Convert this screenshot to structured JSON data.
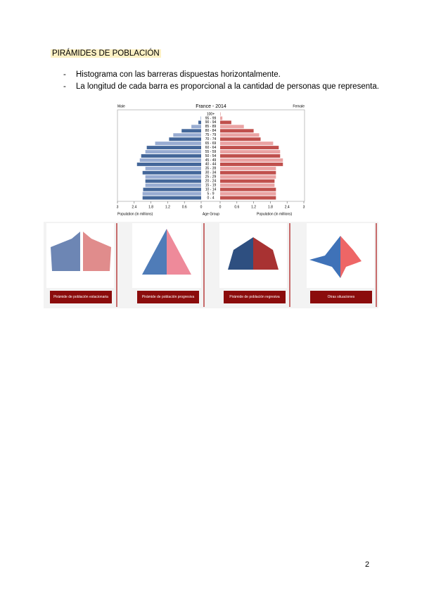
{
  "header": {
    "title": "PIRÁMIDES DE POBLACIÓN"
  },
  "bullets": [
    "Histograma con las barreras dispuestas horizontalmente.",
    "La longitud de cada barra es proporcional a la cantidad de personas que representa."
  ],
  "chart_data": {
    "type": "pyramid",
    "title": "France - 2014",
    "left_label": "Male",
    "right_label": "Female",
    "x_label": "Population (in millions)",
    "center_label": "Age Group",
    "categories": [
      "0 - 4",
      "5 - 9",
      "10 - 14",
      "15 - 19",
      "20 - 24",
      "25 - 29",
      "30 - 34",
      "35 - 39",
      "40 - 44",
      "45 - 49",
      "50 - 54",
      "55 - 59",
      "60 - 64",
      "65 - 69",
      "70 - 74",
      "75 - 79",
      "80 - 84",
      "85 - 89",
      "90 - 94",
      "95 - 99",
      "100+"
    ],
    "series": [
      {
        "name": "Male",
        "color": "#44679a",
        "alt_color": "#98acd2",
        "values": [
          2.1,
          2.1,
          2.08,
          2.0,
          2.0,
          2.0,
          2.1,
          2.0,
          2.3,
          2.2,
          2.15,
          2.0,
          1.95,
          1.65,
          1.15,
          1.0,
          0.7,
          0.35,
          0.1,
          0.02,
          0
        ]
      },
      {
        "name": "Female",
        "color": "#c0504d",
        "alt_color": "#eaa3a3",
        "values": [
          2.0,
          2.0,
          2.0,
          1.95,
          1.95,
          2.0,
          2.0,
          2.0,
          2.25,
          2.25,
          2.15,
          2.15,
          2.1,
          1.9,
          1.45,
          1.4,
          1.2,
          0.85,
          0.4,
          0.08,
          0.01
        ]
      }
    ],
    "xlim": [
      0,
      3
    ],
    "xticks": [
      0,
      0.6,
      1.2,
      1.8,
      2.4,
      3
    ]
  },
  "cards": [
    "Pirámide de población estacionaria",
    "Pirámide de población progresiva",
    "Pirámide de población regresiva",
    "Otras situaciones"
  ],
  "page_number": "2"
}
